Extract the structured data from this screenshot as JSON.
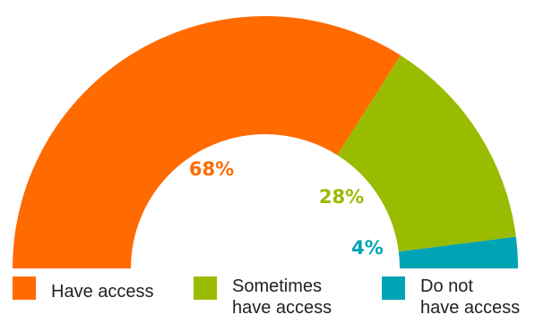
{
  "chart_data": {
    "type": "pie",
    "variant": "half-donut",
    "title": "",
    "slices": [
      {
        "label": "Have access",
        "legend_lines": [
          "Have access"
        ],
        "value": 68,
        "display": "68%",
        "color": "#ff6b00"
      },
      {
        "label": "Sometimes have access",
        "legend_lines": [
          "Sometimes",
          "have access"
        ],
        "value": 28,
        "display": "28%",
        "color": "#99bb00"
      },
      {
        "label": "Do not have access",
        "legend_lines": [
          "Do not",
          "have access"
        ],
        "value": 4,
        "display": "4%",
        "color": "#00a3b4"
      }
    ],
    "legend_position": "bottom"
  }
}
